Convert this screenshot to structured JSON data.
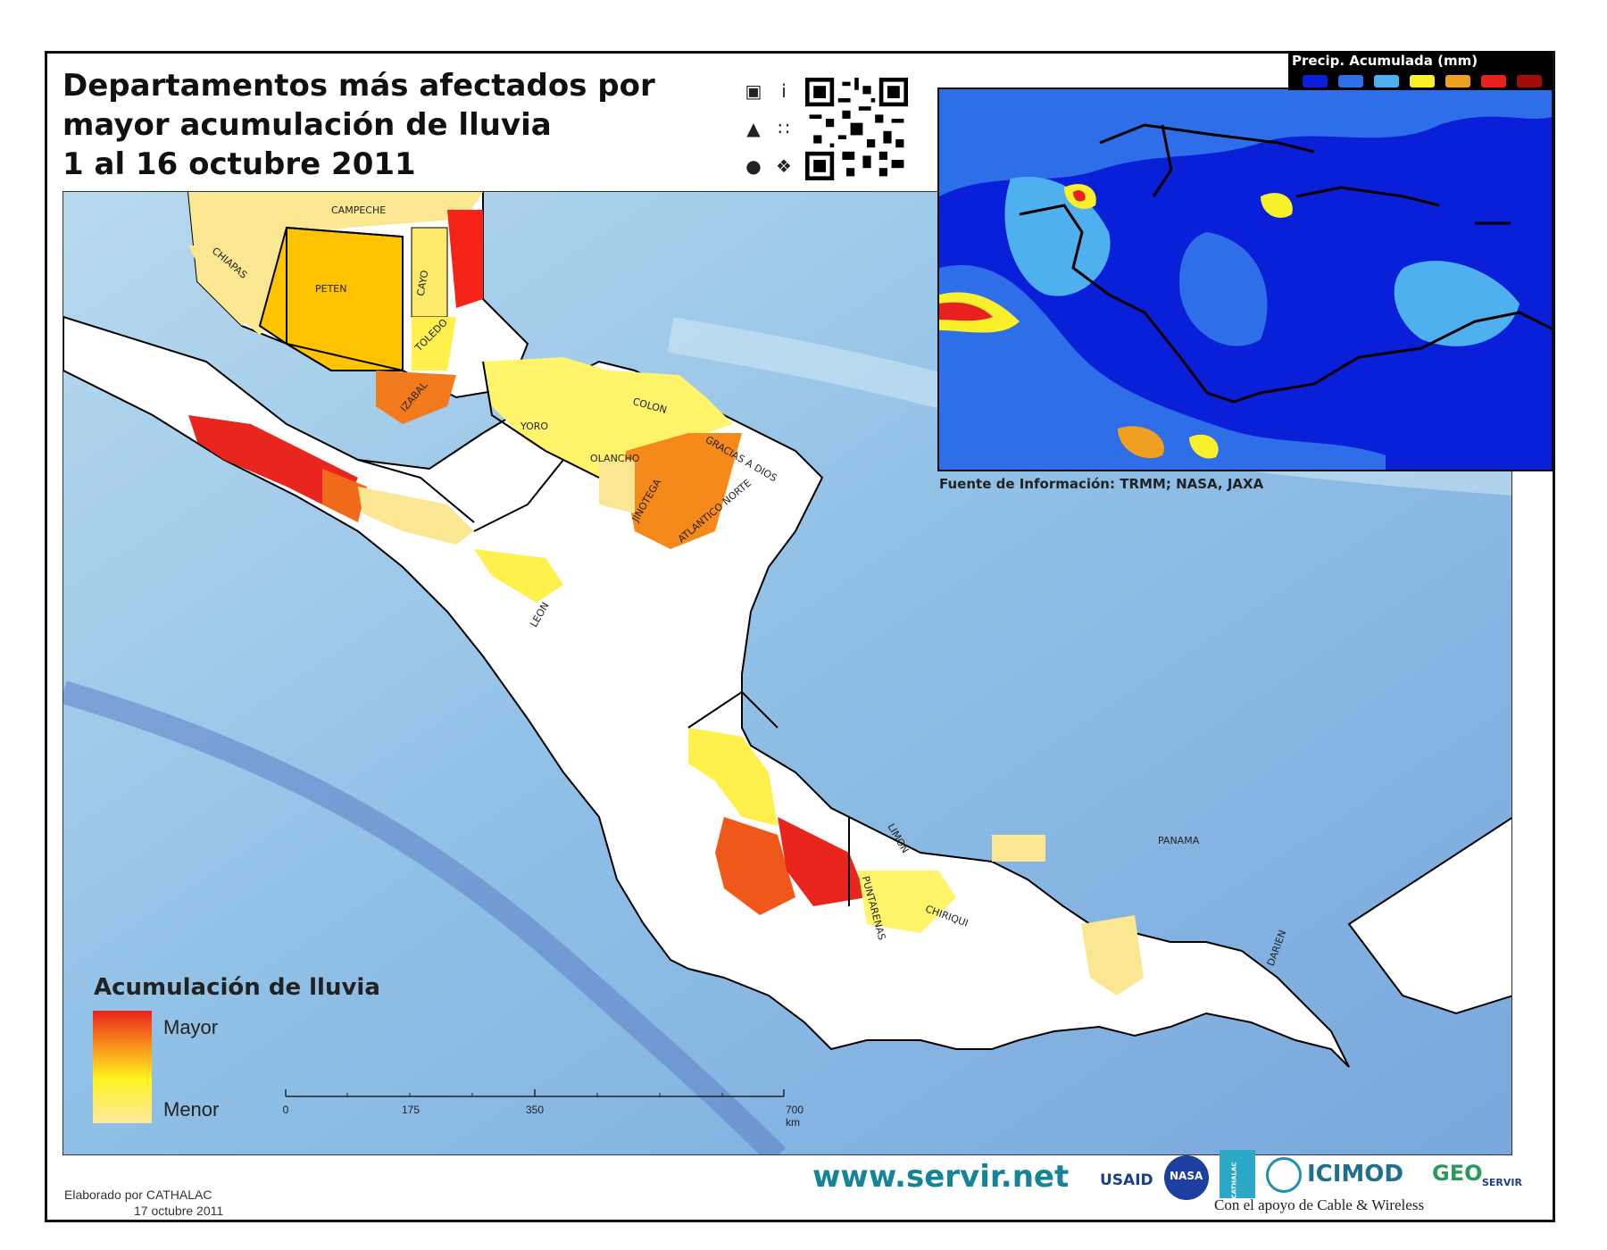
{
  "header": {
    "title_lines": [
      "Departamentos más afectados por",
      "mayor acumulación de lluvia",
      "1 al 16 octubre 2011"
    ]
  },
  "icons": [
    "phone-icon",
    "info-icon",
    "android-icon",
    "blackberry-icon",
    "apple-icon",
    "windows-icon",
    "qr-code-icon"
  ],
  "inset": {
    "legend_title": "Precip. Acumulada (mm)",
    "legend_colors": [
      "#0a1fd8",
      "#2e6ee8",
      "#4fb0f0",
      "#f8f02a",
      "#f0a020",
      "#e82020",
      "#a00c0c"
    ],
    "source": "Fuente de Información: TRMM; NASA, JAXA"
  },
  "departments": [
    {
      "name": "CAMPECHE",
      "level": 1
    },
    {
      "name": "CHIAPAS",
      "level": 1
    },
    {
      "name": "PETEN",
      "level": 3
    },
    {
      "name": "CAYO",
      "level": 1
    },
    {
      "name": "TOLEDO",
      "level": 2
    },
    {
      "name": "IZABAL",
      "level": 4
    },
    {
      "name": "YORO",
      "level": 1
    },
    {
      "name": "COLON",
      "level": 1
    },
    {
      "name": "OLANCHO",
      "level": 1
    },
    {
      "name": "GRACIAS A DIOS",
      "level": 1
    },
    {
      "name": "JINOTEGA",
      "level": 3
    },
    {
      "name": "ATLANTICO NORTE",
      "level": 4
    },
    {
      "name": "LEON",
      "level": 1
    },
    {
      "name": "LIMON",
      "level": 1
    },
    {
      "name": "PUNTARENAS",
      "level": 5
    },
    {
      "name": "CHIRIQUI",
      "level": 6
    },
    {
      "name": "PANAMA",
      "level": 1
    },
    {
      "name": "DARIEN",
      "level": 1
    }
  ],
  "legend": {
    "title": "Acumulación de lluvia",
    "high_label": "Mayor",
    "low_label": "Menor"
  },
  "scale_bar": {
    "labels": [
      "0",
      "175",
      "350",
      "700 km"
    ],
    "values_km": [
      0,
      175,
      350,
      700
    ]
  },
  "footer": {
    "url": "www.servir.net",
    "made_by": "Elaborado por CATHALAC",
    "date": "17 octubre 2011",
    "support": "Con el apoyo de Cable & Wireless",
    "logos": [
      "USAID",
      "NASA",
      "CATHALAC",
      "ICIMOD",
      "GEO",
      "SERVIR"
    ]
  }
}
